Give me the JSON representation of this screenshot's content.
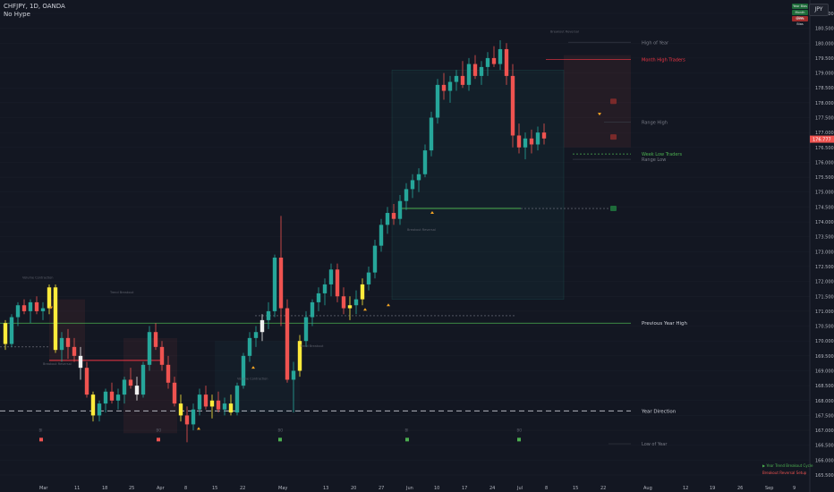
{
  "header": {
    "symbol_line": "CHFJPY, 1D, OANDA",
    "indicator": "No Hype"
  },
  "currency_button": "JPY",
  "status_table": [
    {
      "key": "Y",
      "value": "Year Bias",
      "color": "#1e6b3a"
    },
    {
      "key": "M",
      "value": "Month Bias",
      "color": "#1e6b3a"
    },
    {
      "key": "W",
      "value": "Week Bias",
      "color": "#a02d2d"
    }
  ],
  "colors": {
    "bull": "#26a69a",
    "bear": "#ef5350",
    "highlight": "#ffeb3b",
    "white": "#f0f0f0",
    "green_line": "#4caf50",
    "red_line": "#f23645"
  },
  "price_axis": {
    "ticks": [
      "181.000",
      "180.500",
      "180.000",
      "179.500",
      "179.000",
      "178.500",
      "178.000",
      "177.500",
      "177.000",
      "176.500",
      "176.000",
      "175.500",
      "175.000",
      "174.500",
      "174.000",
      "173.500",
      "173.000",
      "172.500",
      "172.000",
      "171.500",
      "171.000",
      "170.500",
      "170.000",
      "169.500",
      "169.000",
      "168.500",
      "168.000",
      "167.500",
      "167.000",
      "166.500",
      "166.000",
      "165.500"
    ],
    "current": "176.777",
    "current_value": 176.777,
    "min": 165.35,
    "max": 181.45
  },
  "time_axis": [
    "Mar",
    "11",
    "18",
    "25",
    "Apr",
    "8",
    "15",
    "22",
    "May",
    "13",
    "20",
    "27",
    "Jun",
    "10",
    "17",
    "24",
    "Jul",
    "8",
    "15",
    "22",
    "Aug",
    "12",
    "19",
    "26",
    "Sep",
    "9"
  ],
  "levels": [
    {
      "label": "High of Year",
      "value": 180.03
    },
    {
      "label": "Month High Traders",
      "value": 179.45
    },
    {
      "label": "Range High",
      "value": 177.35
    },
    {
      "label": "Week Low Traders",
      "value": 176.28
    },
    {
      "label": "Range Low",
      "value": 176.1
    },
    {
      "label": "Previous Year High",
      "value": 170.6
    },
    {
      "label": "Year Direction",
      "value": 167.65
    },
    {
      "label": "Low of Year",
      "value": 166.55
    }
  ],
  "annotations": [
    "Breakout Reversal",
    "Volume Contraction",
    "Trend Breakout",
    "Breakout Reversal",
    "Volume Contraction",
    "Trend Breakout",
    "Breakout Reversal",
    "Trend Breakout"
  ],
  "markers": [
    "BO",
    "BO",
    "BO",
    "BI",
    "BI"
  ],
  "legend": [
    {
      "text": "Year Trend Breakout Cycle",
      "color": "#4caf50"
    },
    {
      "text": "Breakout Reversal Setup",
      "color": "#ef5350"
    }
  ],
  "candles": [
    [
      170.6,
      170.7,
      169.7,
      169.9
    ],
    [
      169.9,
      170.9,
      169.8,
      170.8
    ],
    [
      170.8,
      171.3,
      170.5,
      171.2
    ],
    [
      171.2,
      171.4,
      170.9,
      171.0
    ],
    [
      171.0,
      171.4,
      170.6,
      171.3
    ],
    [
      171.3,
      171.5,
      170.9,
      171.0
    ],
    [
      171.0,
      171.3,
      170.7,
      171.1
    ],
    [
      171.1,
      171.9,
      170.9,
      171.8
    ],
    [
      171.8,
      171.9,
      169.6,
      169.7
    ],
    [
      169.7,
      170.3,
      169.3,
      170.1
    ],
    [
      170.1,
      170.4,
      169.4,
      169.8
    ],
    [
      169.8,
      170.1,
      169.3,
      169.5
    ],
    [
      169.5,
      169.8,
      168.7,
      169.1
    ],
    [
      169.1,
      169.3,
      168.1,
      168.2
    ],
    [
      168.2,
      168.3,
      167.3,
      167.5
    ],
    [
      167.5,
      168.0,
      167.3,
      167.9
    ],
    [
      167.9,
      168.4,
      167.6,
      168.3
    ],
    [
      168.3,
      168.6,
      167.9,
      168.0
    ],
    [
      168.0,
      168.4,
      167.7,
      168.2
    ],
    [
      168.2,
      168.8,
      167.9,
      168.7
    ],
    [
      168.7,
      169.1,
      168.4,
      168.5
    ],
    [
      168.5,
      168.8,
      168.0,
      168.2
    ],
    [
      168.2,
      169.3,
      168.1,
      169.2
    ],
    [
      169.2,
      170.5,
      169.0,
      170.3
    ],
    [
      170.3,
      170.6,
      169.7,
      169.8
    ],
    [
      169.8,
      170.0,
      169.0,
      169.2
    ],
    [
      169.2,
      169.5,
      168.4,
      168.6
    ],
    [
      168.6,
      168.8,
      167.8,
      167.9
    ],
    [
      167.9,
      168.2,
      167.3,
      167.5
    ],
    [
      167.5,
      167.8,
      166.6,
      167.2
    ],
    [
      167.2,
      167.9,
      167.0,
      167.7
    ],
    [
      167.7,
      168.4,
      167.5,
      168.2
    ],
    [
      168.2,
      168.5,
      167.7,
      167.8
    ],
    [
      167.8,
      168.2,
      167.4,
      168.0
    ],
    [
      168.0,
      168.3,
      167.6,
      167.7
    ],
    [
      167.7,
      168.1,
      167.5,
      167.9
    ],
    [
      167.9,
      168.2,
      167.5,
      167.6
    ],
    [
      167.6,
      168.6,
      167.5,
      168.5
    ],
    [
      168.5,
      169.6,
      168.4,
      169.5
    ],
    [
      169.5,
      170.3,
      169.3,
      170.1
    ],
    [
      170.1,
      170.5,
      169.8,
      170.3
    ],
    [
      170.3,
      170.9,
      170.0,
      170.7
    ],
    [
      170.7,
      171.3,
      170.4,
      171.0
    ],
    [
      171.0,
      172.9,
      170.8,
      172.8
    ],
    [
      172.8,
      174.2,
      170.5,
      171.1
    ],
    [
      171.1,
      171.4,
      168.6,
      168.7
    ],
    [
      168.7,
      169.3,
      167.6,
      169.0
    ],
    [
      169.0,
      170.2,
      168.8,
      170.0
    ],
    [
      170.0,
      171.0,
      169.8,
      170.8
    ],
    [
      170.8,
      171.4,
      170.5,
      171.3
    ],
    [
      171.3,
      171.8,
      171.0,
      171.6
    ],
    [
      171.6,
      172.1,
      171.2,
      171.9
    ],
    [
      171.9,
      172.6,
      171.5,
      172.4
    ],
    [
      172.4,
      172.6,
      171.3,
      171.5
    ],
    [
      171.5,
      171.8,
      170.9,
      171.1
    ],
    [
      171.1,
      171.5,
      170.7,
      171.2
    ],
    [
      171.2,
      171.7,
      170.9,
      171.4
    ],
    [
      171.4,
      172.1,
      171.2,
      171.9
    ],
    [
      171.9,
      172.5,
      171.7,
      172.3
    ],
    [
      172.3,
      173.4,
      172.1,
      173.2
    ],
    [
      173.2,
      174.1,
      173.0,
      173.9
    ],
    [
      173.9,
      174.5,
      173.6,
      174.3
    ],
    [
      174.3,
      174.6,
      173.9,
      174.1
    ],
    [
      174.1,
      174.9,
      173.9,
      174.7
    ],
    [
      174.7,
      175.3,
      174.4,
      175.1
    ],
    [
      175.1,
      175.6,
      174.8,
      175.4
    ],
    [
      175.4,
      175.8,
      175.0,
      175.6
    ],
    [
      175.6,
      176.6,
      175.5,
      176.4
    ],
    [
      176.4,
      177.7,
      176.2,
      177.5
    ],
    [
      177.5,
      178.8,
      177.3,
      178.6
    ],
    [
      178.6,
      179.0,
      178.1,
      178.4
    ],
    [
      178.4,
      178.9,
      178.0,
      178.7
    ],
    [
      178.7,
      179.1,
      178.4,
      178.9
    ],
    [
      178.9,
      179.4,
      178.5,
      178.6
    ],
    [
      178.6,
      179.5,
      178.4,
      179.3
    ],
    [
      179.3,
      179.6,
      178.8,
      178.9
    ],
    [
      178.9,
      179.4,
      178.6,
      179.2
    ],
    [
      179.2,
      179.7,
      178.9,
      179.5
    ],
    [
      179.5,
      179.9,
      179.2,
      179.3
    ],
    [
      179.3,
      180.1,
      179.1,
      179.8
    ],
    [
      179.8,
      180.0,
      178.6,
      178.9
    ],
    [
      178.9,
      179.3,
      176.5,
      176.9
    ],
    [
      176.9,
      177.3,
      176.3,
      176.5
    ],
    [
      176.5,
      177.0,
      176.1,
      176.8
    ],
    [
      176.8,
      177.1,
      176.3,
      176.6
    ],
    [
      176.6,
      177.2,
      176.4,
      177.0
    ],
    [
      177.0,
      177.3,
      176.6,
      176.8
    ]
  ]
}
